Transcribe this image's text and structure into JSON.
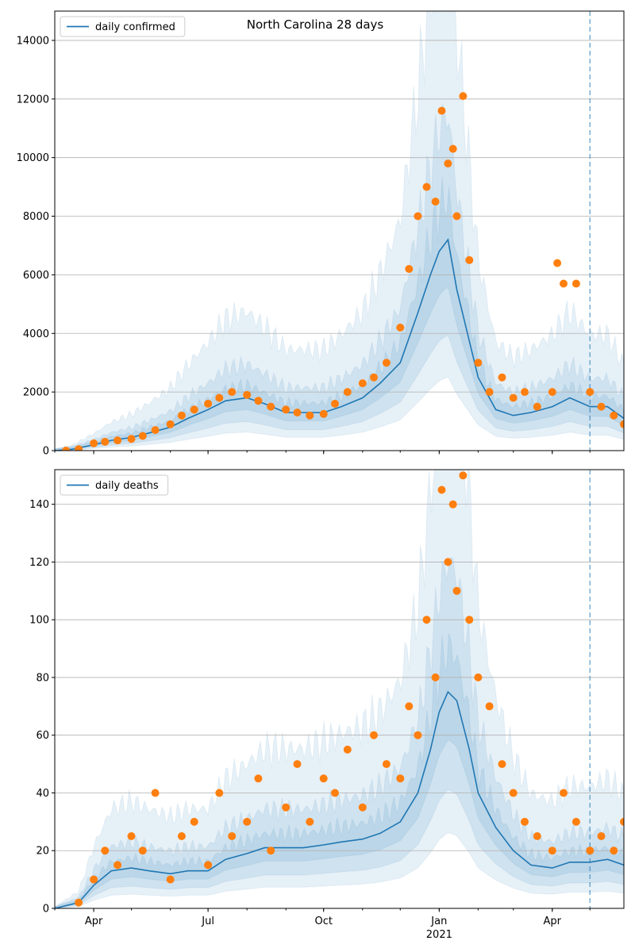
{
  "figure": {
    "title": "North Carolina 28 days",
    "x_tick_labels": [
      {
        "label": "Apr",
        "date": "2020-04-01",
        "sub": ""
      },
      {
        "label": "Jul",
        "date": "2020-07-01",
        "sub": ""
      },
      {
        "label": "Oct",
        "date": "2020-10-01",
        "sub": ""
      },
      {
        "label": "Jan",
        "date": "2021-01-01",
        "sub": "2021"
      },
      {
        "label": "Apr",
        "date": "2021-04-01",
        "sub": ""
      }
    ],
    "x_range": [
      "2020-03-01",
      "2021-05-28"
    ],
    "forecast_start": "2021-05-01"
  },
  "colors": {
    "line": "#1f77b4",
    "points": "#ff7f0e",
    "band": "#1f77b4",
    "grid": "#b0b0b0"
  },
  "chart_data": [
    {
      "type": "line",
      "legend": "daily confirmed",
      "legend_position": "top-left",
      "grid": "horizontal",
      "ylim": [
        0,
        15000
      ],
      "yticks": [
        0,
        2000,
        4000,
        6000,
        8000,
        10000,
        12000,
        14000
      ],
      "series": [
        {
          "name": "daily confirmed",
          "kind": "line",
          "x": [
            "2020-03-01",
            "2020-03-15",
            "2020-04-01",
            "2020-04-15",
            "2020-05-01",
            "2020-05-15",
            "2020-06-01",
            "2020-06-15",
            "2020-07-01",
            "2020-07-15",
            "2020-08-01",
            "2020-08-15",
            "2020-09-01",
            "2020-09-15",
            "2020-10-01",
            "2020-10-15",
            "2020-11-01",
            "2020-11-15",
            "2020-12-01",
            "2020-12-15",
            "2020-12-25",
            "2021-01-01",
            "2021-01-08",
            "2021-01-15",
            "2021-02-01",
            "2021-02-15",
            "2021-03-01",
            "2021-03-15",
            "2021-04-01",
            "2021-04-15",
            "2021-05-01",
            "2021-05-15",
            "2021-05-28"
          ],
          "y": [
            0,
            50,
            200,
            350,
            450,
            600,
            800,
            1100,
            1400,
            1700,
            1800,
            1600,
            1300,
            1300,
            1300,
            1500,
            1800,
            2300,
            3000,
            4700,
            6000,
            6800,
            7200,
            5500,
            2500,
            1400,
            1200,
            1300,
            1500,
            1800,
            1500,
            1500,
            1100
          ]
        },
        {
          "name": "daily confirmed observed",
          "kind": "points",
          "x": [
            "2020-03-10",
            "2020-03-20",
            "2020-04-01",
            "2020-04-10",
            "2020-04-20",
            "2020-05-01",
            "2020-05-10",
            "2020-05-20",
            "2020-06-01",
            "2020-06-10",
            "2020-06-20",
            "2020-07-01",
            "2020-07-10",
            "2020-07-20",
            "2020-08-01",
            "2020-08-10",
            "2020-08-20",
            "2020-09-01",
            "2020-09-10",
            "2020-09-20",
            "2020-10-01",
            "2020-10-10",
            "2020-10-20",
            "2020-11-01",
            "2020-11-10",
            "2020-11-20",
            "2020-12-01",
            "2020-12-08",
            "2020-12-15",
            "2020-12-22",
            "2020-12-29",
            "2021-01-03",
            "2021-01-08",
            "2021-01-12",
            "2021-01-15",
            "2021-01-20",
            "2021-01-25",
            "2021-02-01",
            "2021-02-10",
            "2021-02-20",
            "2021-03-01",
            "2021-03-10",
            "2021-03-20",
            "2021-04-01",
            "2021-04-05",
            "2021-04-10",
            "2021-04-20",
            "2021-05-01",
            "2021-05-10",
            "2021-05-20",
            "2021-05-28"
          ],
          "y": [
            0,
            50,
            250,
            300,
            350,
            400,
            500,
            700,
            900,
            1200,
            1400,
            1600,
            1800,
            2000,
            1900,
            1700,
            1500,
            1400,
            1300,
            1200,
            1250,
            1600,
            2000,
            2300,
            2500,
            3000,
            4200,
            6200,
            8000,
            9000,
            8500,
            11600,
            9800,
            10300,
            8000,
            12100,
            6500,
            3000,
            2000,
            2500,
            1800,
            2000,
            1500,
            2000,
            6400,
            5700,
            5700,
            2000,
            1500,
            1200,
            900
          ]
        }
      ]
    },
    {
      "type": "line",
      "legend": "daily deaths",
      "legend_position": "top-left",
      "grid": "horizontal",
      "ylim": [
        0,
        152
      ],
      "yticks": [
        0,
        20,
        40,
        60,
        80,
        100,
        120,
        140
      ],
      "series": [
        {
          "name": "daily deaths",
          "kind": "line",
          "x": [
            "2020-03-01",
            "2020-03-20",
            "2020-04-01",
            "2020-04-15",
            "2020-05-01",
            "2020-05-15",
            "2020-06-01",
            "2020-06-15",
            "2020-07-01",
            "2020-07-15",
            "2020-08-01",
            "2020-08-15",
            "2020-09-01",
            "2020-09-15",
            "2020-10-01",
            "2020-10-15",
            "2020-11-01",
            "2020-11-15",
            "2020-12-01",
            "2020-12-15",
            "2020-12-25",
            "2021-01-01",
            "2021-01-08",
            "2021-01-15",
            "2021-01-25",
            "2021-02-01",
            "2021-02-15",
            "2021-03-01",
            "2021-03-15",
            "2021-04-01",
            "2021-04-15",
            "2021-05-01",
            "2021-05-15",
            "2021-05-28"
          ],
          "y": [
            0,
            2,
            8,
            13,
            14,
            13,
            12,
            13,
            13,
            17,
            19,
            21,
            21,
            21,
            22,
            23,
            24,
            26,
            30,
            40,
            55,
            68,
            75,
            72,
            55,
            40,
            28,
            20,
            15,
            14,
            16,
            16,
            17,
            15
          ]
        },
        {
          "name": "daily deaths observed",
          "kind": "points",
          "x": [
            "2020-03-20",
            "2020-04-01",
            "2020-04-10",
            "2020-04-20",
            "2020-05-01",
            "2020-05-10",
            "2020-05-20",
            "2020-06-01",
            "2020-06-10",
            "2020-06-20",
            "2020-07-01",
            "2020-07-10",
            "2020-07-20",
            "2020-08-01",
            "2020-08-10",
            "2020-08-20",
            "2020-09-01",
            "2020-09-10",
            "2020-09-20",
            "2020-10-01",
            "2020-10-10",
            "2020-10-20",
            "2020-11-01",
            "2020-11-10",
            "2020-11-20",
            "2020-12-01",
            "2020-12-08",
            "2020-12-15",
            "2020-12-22",
            "2020-12-29",
            "2021-01-03",
            "2021-01-08",
            "2021-01-12",
            "2021-01-15",
            "2021-01-20",
            "2021-01-25",
            "2021-02-01",
            "2021-02-10",
            "2021-02-20",
            "2021-03-01",
            "2021-03-10",
            "2021-03-20",
            "2021-04-01",
            "2021-04-10",
            "2021-04-20",
            "2021-05-01",
            "2021-05-10",
            "2021-05-20",
            "2021-05-28"
          ],
          "y": [
            2,
            10,
            20,
            15,
            25,
            20,
            40,
            10,
            25,
            30,
            15,
            40,
            25,
            30,
            45,
            20,
            35,
            50,
            30,
            45,
            40,
            55,
            35,
            60,
            50,
            45,
            70,
            60,
            100,
            80,
            145,
            120,
            140,
            110,
            150,
            100,
            80,
            70,
            50,
            40,
            30,
            25,
            20,
            40,
            30,
            20,
            25,
            20,
            30
          ]
        }
      ]
    }
  ]
}
